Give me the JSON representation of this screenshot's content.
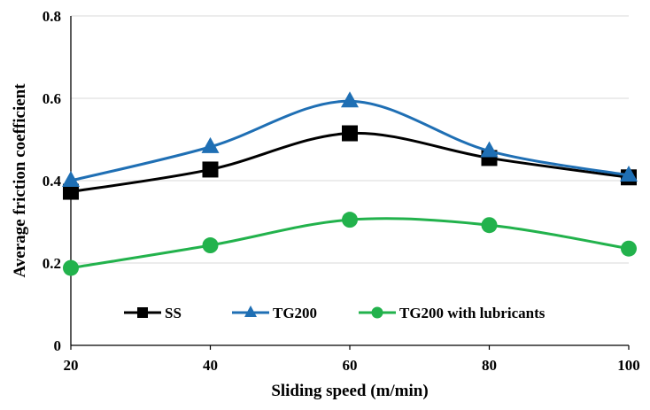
{
  "chart_data": {
    "type": "line",
    "xlabel": "Sliding speed (m/min)",
    "ylabel": "Average friction coefficient",
    "x": [
      20,
      40,
      60,
      80,
      100
    ],
    "xticks": [
      "20",
      "40",
      "60",
      "80",
      "100"
    ],
    "yticks": [
      "0",
      "0.2",
      "0.4",
      "0.6",
      "0.8"
    ],
    "xlim": [
      20,
      100
    ],
    "ylim": [
      0,
      0.8
    ],
    "grid": "horizontal",
    "legend_position": "bottom-center",
    "series": [
      {
        "name": "SS",
        "values": [
          0.373,
          0.427,
          0.515,
          0.455,
          0.408
        ],
        "color": "#000000",
        "marker": "square"
      },
      {
        "name": "TG200",
        "values": [
          0.4,
          0.482,
          0.593,
          0.472,
          0.413
        ],
        "color": "#1f6fb4",
        "marker": "triangle"
      },
      {
        "name": "TG200 with lubricants",
        "values": [
          0.188,
          0.243,
          0.305,
          0.292,
          0.235
        ],
        "color": "#22b24c",
        "marker": "circle"
      }
    ]
  }
}
